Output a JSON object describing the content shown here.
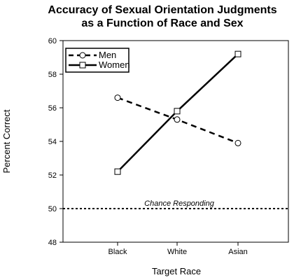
{
  "chart_data": {
    "type": "line",
    "title": "Accuracy of Sexual Orientation Judgments",
    "subtitle": "as a Function of Race and Sex",
    "xlabel": "Target Race",
    "ylabel": "Percent Correct",
    "categories": [
      "Black",
      "White",
      "Asian"
    ],
    "ylim": [
      48,
      60
    ],
    "yticks": [
      48,
      50,
      52,
      54,
      56,
      58,
      60
    ],
    "series": [
      {
        "name": "Men",
        "values": [
          56.6,
          55.3,
          53.9
        ],
        "line_style": "dashed",
        "marker": "circle"
      },
      {
        "name": "Women",
        "values": [
          52.2,
          55.8,
          59.2
        ],
        "line_style": "solid",
        "marker": "square"
      }
    ],
    "reference_line": {
      "value": 50,
      "label": "Chance Responding",
      "line_style": "dotted"
    },
    "legend_position": "top-left",
    "grid": false
  }
}
